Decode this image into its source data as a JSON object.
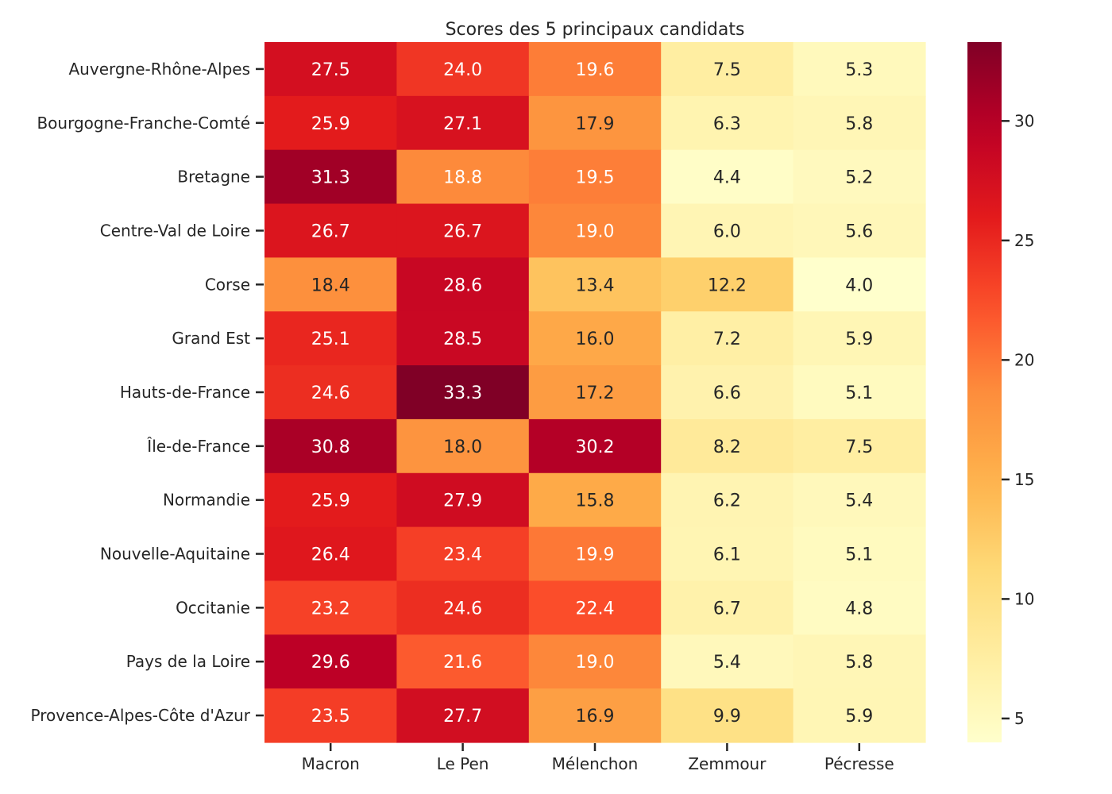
{
  "chart_data": {
    "type": "heatmap",
    "title": "Scores des 5 principaux candidats",
    "xlabel": "",
    "ylabel": "",
    "colormap": "YlOrRd",
    "columns": [
      "Macron",
      "Le Pen",
      "Mélenchon",
      "Zemmour",
      "Pécresse"
    ],
    "rows": [
      "Auvergne-Rhône-Alpes",
      "Bourgogne-Franche-Comté",
      "Bretagne",
      "Centre-Val de Loire",
      "Corse",
      "Grand Est",
      "Hauts-de-France",
      "Île-de-France",
      "Normandie",
      "Nouvelle-Aquitaine",
      "Occitanie",
      "Pays de la Loire",
      "Provence-Alpes-Côte d'Azur"
    ],
    "values": [
      [
        27.5,
        24.0,
        19.6,
        7.5,
        5.3
      ],
      [
        25.9,
        27.1,
        17.9,
        6.3,
        5.8
      ],
      [
        31.3,
        18.8,
        19.5,
        4.4,
        5.2
      ],
      [
        26.7,
        26.7,
        19.0,
        6.0,
        5.6
      ],
      [
        18.4,
        28.6,
        13.4,
        12.2,
        4.0
      ],
      [
        25.1,
        28.5,
        16.0,
        7.2,
        5.9
      ],
      [
        24.6,
        33.3,
        17.2,
        6.6,
        5.1
      ],
      [
        30.8,
        18.0,
        30.2,
        8.2,
        7.5
      ],
      [
        25.9,
        27.9,
        15.8,
        6.2,
        5.4
      ],
      [
        26.4,
        23.4,
        19.9,
        6.1,
        5.1
      ],
      [
        23.2,
        24.6,
        22.4,
        6.7,
        4.8
      ],
      [
        29.6,
        21.6,
        19.0,
        5.4,
        5.8
      ],
      [
        23.5,
        27.7,
        16.9,
        9.9,
        5.9
      ]
    ],
    "annotation_format": "0.1",
    "colorbar": {
      "range": [
        4.0,
        33.3
      ],
      "ticks": [
        5,
        10,
        15,
        20,
        25,
        30
      ]
    },
    "grid": false
  }
}
